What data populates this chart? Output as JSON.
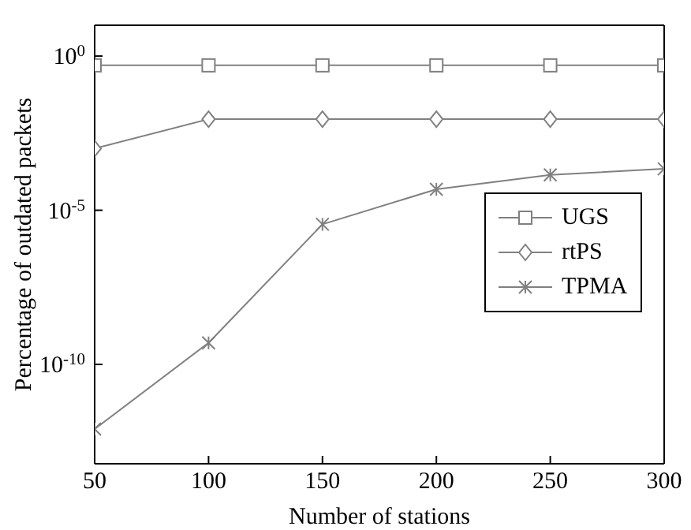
{
  "chart_data": {
    "type": "line",
    "xlabel": "Number of stations",
    "ylabel": "Percentage of outdated packets",
    "x": [
      50,
      100,
      150,
      200,
      250,
      300
    ],
    "xlim": [
      50,
      300
    ],
    "xticks": [
      50,
      100,
      150,
      200,
      250,
      300
    ],
    "log": "y",
    "ylim": [
      6e-14,
      10
    ],
    "yticks": [
      {
        "value": 1,
        "label": "10$^{0}$"
      },
      {
        "value": 1e-05,
        "label": "10$^{-5}$"
      },
      {
        "value": 1e-10,
        "label": "10$^{-10}$"
      }
    ],
    "grid": false,
    "legend": "right",
    "line_style": "solid",
    "series": [
      {
        "name": "UGS",
        "color": "#808080",
        "marker": "square",
        "values": [
          0.5,
          0.5,
          0.5,
          0.5,
          0.5,
          0.5
        ]
      },
      {
        "name": "rtPS",
        "color": "#808080",
        "marker": "diamond",
        "values": [
          0.001,
          0.009,
          0.009,
          0.009,
          0.009,
          0.009
        ]
      },
      {
        "name": "TPMA",
        "color": "#808080",
        "marker": "cross",
        "values": [
          8e-13,
          5e-10,
          3.5e-06,
          4.8e-05,
          0.00014,
          0.00022
        ]
      }
    ]
  }
}
